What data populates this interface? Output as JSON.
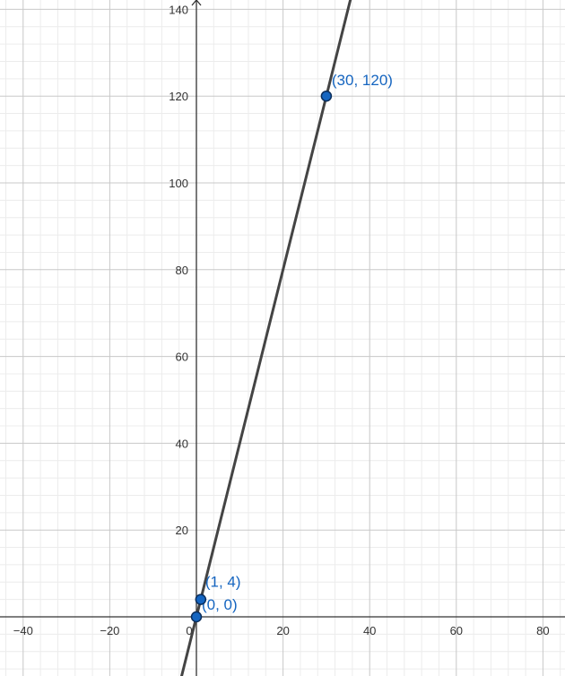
{
  "chart_data": {
    "type": "line",
    "title": "",
    "xlabel": "",
    "ylabel": "",
    "xlim": [
      -45,
      85
    ],
    "ylim": [
      -14,
      142
    ],
    "grid": true,
    "minor_grid": true,
    "x_ticks": [
      -40,
      -20,
      0,
      20,
      40,
      60,
      80
    ],
    "y_ticks": [
      20,
      40,
      60,
      80,
      100,
      120,
      140
    ],
    "x_tick_labels": [
      "−40",
      "−20",
      "0",
      "20",
      "40",
      "60",
      "80"
    ],
    "y_tick_labels": [
      "20",
      "40",
      "60",
      "80",
      "100",
      "120",
      "140"
    ],
    "series": [
      {
        "equation_slope": 4,
        "equation_intercept": 0,
        "color": "#444444"
      }
    ],
    "points": [
      {
        "x": 0,
        "y": 0,
        "label": "(0, 0)"
      },
      {
        "x": 1,
        "y": 4,
        "label": "(1, 4)"
      },
      {
        "x": 30,
        "y": 120,
        "label": "(30, 120)"
      }
    ],
    "colors": {
      "grid_major": "#c8c8c8",
      "grid_minor": "#ececec",
      "axis": "#333333",
      "point_fill": "#1565c0",
      "point_stroke": "#0b2e5c",
      "point_label": "#1565c0"
    }
  }
}
